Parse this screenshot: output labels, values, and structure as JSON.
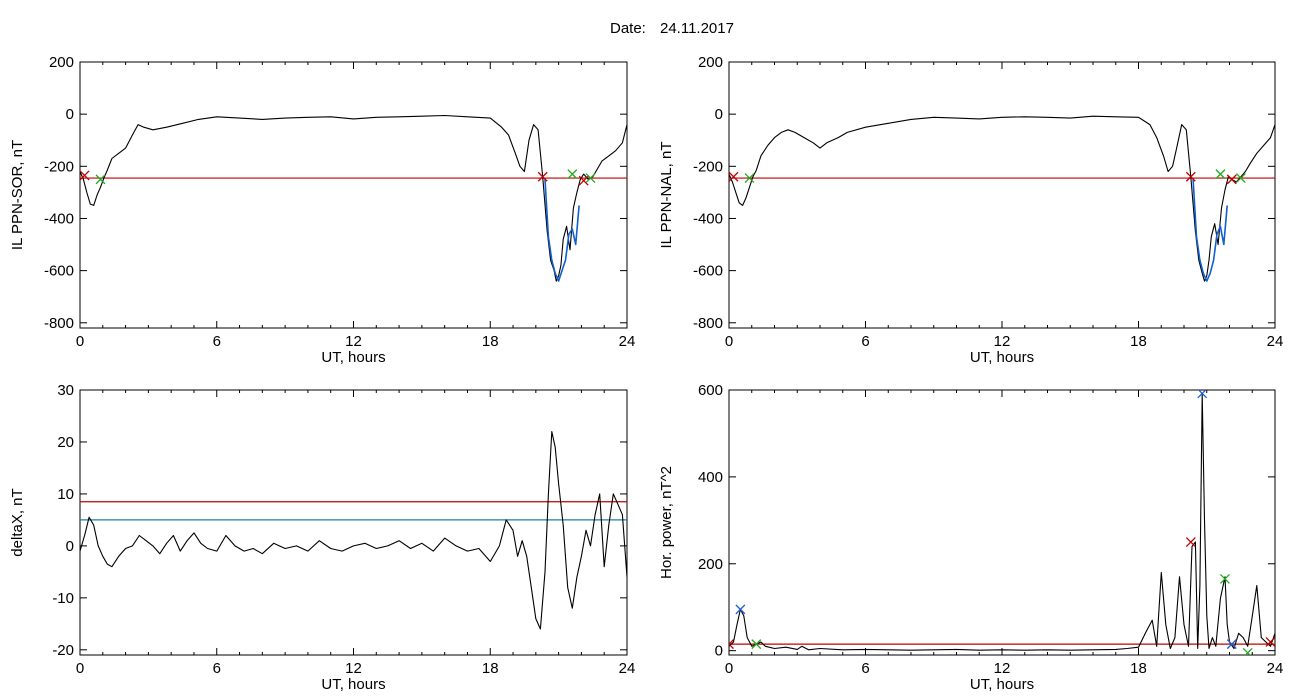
{
  "header": {
    "date_label": "Date:",
    "date_value": "24.11.2017"
  },
  "colors": {
    "trace": "#000000",
    "threshold_red": "#c00000",
    "threshold_cyan": "#1a7fa0",
    "disturbed": "#1060d0",
    "marker_green": "#22aa22",
    "marker_red": "#c00000",
    "marker_blue": "#2060d0"
  },
  "chart_data": [
    {
      "type": "line",
      "xlabel": "UT, hours",
      "ylabel": "IL PPN-SOR, nT",
      "xlim": [
        0,
        24
      ],
      "ylim": [
        -820,
        200
      ],
      "xticks": [
        0,
        6,
        12,
        18,
        24
      ],
      "yticks": [
        200,
        0,
        -200,
        -400,
        -600,
        -800
      ],
      "grid": false,
      "series": [
        {
          "values_x": [
            0,
            0.15,
            0.3,
            0.45,
            0.6,
            0.75,
            0.9,
            1.05,
            1.2,
            1.4,
            1.7,
            2.0,
            2.3,
            2.55,
            2.8,
            3.2,
            3.8,
            4.5,
            5.2,
            6,
            7,
            8,
            9,
            10,
            11,
            12,
            13,
            14,
            15,
            16,
            17,
            18,
            18.5,
            18.8,
            19.1,
            19.3,
            19.5,
            19.7,
            19.9,
            20.1,
            20.3,
            20.5,
            20.65,
            20.8,
            20.9,
            21.0,
            21.1,
            21.2,
            21.35,
            21.5,
            21.65,
            21.8,
            21.95,
            22.1,
            22.3,
            22.5,
            22.7,
            22.9,
            23.2,
            23.5,
            23.8,
            24
          ],
          "values_y": [
            -220,
            -250,
            -300,
            -345,
            -350,
            -310,
            -280,
            -245,
            -215,
            -170,
            -150,
            -130,
            -80,
            -40,
            -50,
            -60,
            -50,
            -35,
            -20,
            -10,
            -15,
            -20,
            -15,
            -12,
            -10,
            -18,
            -12,
            -10,
            -8,
            -5,
            -10,
            -15,
            -50,
            -80,
            -150,
            -200,
            -220,
            -100,
            -40,
            -60,
            -240,
            -450,
            -560,
            -600,
            -640,
            -620,
            -580,
            -480,
            -430,
            -520,
            -360,
            -300,
            -250,
            -230,
            -250,
            -240,
            -210,
            -180,
            -160,
            -140,
            -110,
            -40
          ]
        },
        {
          "values_x": [
            20.4,
            20.55,
            20.7,
            20.85,
            21.0,
            21.15,
            21.3,
            21.45,
            21.6,
            21.75,
            21.9
          ],
          "values_y": [
            -250,
            -470,
            -560,
            -610,
            -640,
            -600,
            -560,
            -460,
            -440,
            -500,
            -350
          ]
        }
      ],
      "thresholds": [
        {
          "y": -245,
          "color": "red"
        }
      ],
      "markers": [
        {
          "x": 0.2,
          "y": -235,
          "color": "red"
        },
        {
          "x": 0.9,
          "y": -250,
          "color": "green"
        },
        {
          "x": 20.3,
          "y": -240,
          "color": "red"
        },
        {
          "x": 21.6,
          "y": -230,
          "color": "green"
        },
        {
          "x": 22.1,
          "y": -255,
          "color": "red"
        },
        {
          "x": 22.4,
          "y": -245,
          "color": "green"
        }
      ]
    },
    {
      "type": "line",
      "xlabel": "UT, hours",
      "ylabel": "IL PPN-NAL, nT",
      "xlim": [
        0,
        24
      ],
      "ylim": [
        -820,
        200
      ],
      "xticks": [
        0,
        6,
        12,
        18,
        24
      ],
      "yticks": [
        200,
        0,
        -200,
        -400,
        -600,
        -800
      ],
      "grid": false,
      "series": [
        {
          "values_x": [
            0,
            0.15,
            0.3,
            0.45,
            0.6,
            0.75,
            0.9,
            1.05,
            1.2,
            1.4,
            1.7,
            2.0,
            2.3,
            2.6,
            2.9,
            3.3,
            3.7,
            4.0,
            4.3,
            4.8,
            5.2,
            6,
            7,
            8,
            9,
            10,
            11,
            12,
            13,
            14,
            15,
            16,
            17,
            18,
            18.5,
            18.8,
            19.1,
            19.3,
            19.5,
            19.7,
            19.9,
            20.1,
            20.3,
            20.5,
            20.65,
            20.8,
            20.9,
            21.0,
            21.1,
            21.2,
            21.35,
            21.5,
            21.65,
            21.8,
            21.95,
            22.1,
            22.3,
            22.5,
            22.7,
            22.9,
            23.2,
            23.5,
            23.8,
            24
          ],
          "values_y": [
            -230,
            -260,
            -300,
            -340,
            -350,
            -320,
            -280,
            -240,
            -215,
            -160,
            -120,
            -90,
            -70,
            -60,
            -70,
            -90,
            -110,
            -130,
            -110,
            -90,
            -70,
            -50,
            -35,
            -20,
            -12,
            -15,
            -18,
            -12,
            -10,
            -12,
            -15,
            -8,
            -10,
            -12,
            -40,
            -90,
            -160,
            -220,
            -200,
            -120,
            -40,
            -60,
            -240,
            -450,
            -560,
            -610,
            -640,
            -620,
            -560,
            -470,
            -420,
            -500,
            -360,
            -290,
            -240,
            -250,
            -260,
            -240,
            -220,
            -190,
            -150,
            -120,
            -90,
            -40
          ]
        },
        {
          "values_x": [
            20.4,
            20.55,
            20.7,
            20.85,
            21.0,
            21.15,
            21.3,
            21.45,
            21.6,
            21.75,
            21.9
          ],
          "values_y": [
            -250,
            -470,
            -560,
            -610,
            -640,
            -610,
            -560,
            -460,
            -430,
            -500,
            -350
          ]
        }
      ],
      "thresholds": [
        {
          "y": -245,
          "color": "red"
        }
      ],
      "markers": [
        {
          "x": 0.2,
          "y": -240,
          "color": "red"
        },
        {
          "x": 0.9,
          "y": -245,
          "color": "green"
        },
        {
          "x": 20.3,
          "y": -240,
          "color": "red"
        },
        {
          "x": 21.6,
          "y": -230,
          "color": "green"
        },
        {
          "x": 22.1,
          "y": -250,
          "color": "red"
        },
        {
          "x": 22.5,
          "y": -245,
          "color": "green"
        }
      ]
    },
    {
      "type": "line",
      "xlabel": "UT, hours",
      "ylabel": "deltaX, nT",
      "xlim": [
        0,
        24
      ],
      "ylim": [
        -21,
        30
      ],
      "xticks": [
        0,
        6,
        12,
        18,
        24
      ],
      "yticks": [
        30,
        20,
        10,
        0,
        -10,
        -20
      ],
      "grid": false,
      "series": [
        {
          "values_x": [
            0,
            0.2,
            0.4,
            0.6,
            0.8,
            1.0,
            1.2,
            1.4,
            1.7,
            2.0,
            2.3,
            2.6,
            2.9,
            3.2,
            3.5,
            3.8,
            4.1,
            4.4,
            4.7,
            5.0,
            5.3,
            5.6,
            6.0,
            6.4,
            6.8,
            7.2,
            7.6,
            8.0,
            8.5,
            9,
            9.5,
            10,
            10.5,
            11,
            11.5,
            12,
            12.5,
            13,
            13.5,
            14,
            14.5,
            15,
            15.5,
            16,
            16.5,
            17,
            17.5,
            18,
            18.4,
            18.7,
            19.0,
            19.2,
            19.4,
            19.6,
            19.8,
            20.0,
            20.2,
            20.4,
            20.55,
            20.7,
            20.85,
            21.0,
            21.2,
            21.4,
            21.6,
            21.8,
            22.0,
            22.2,
            22.4,
            22.6,
            22.8,
            23.0,
            23.2,
            23.4,
            23.6,
            23.8,
            24
          ],
          "values_y": [
            -1,
            2,
            5.5,
            4,
            0,
            -2,
            -3.5,
            -4,
            -2,
            -0.5,
            0,
            2,
            1,
            0,
            -1.5,
            0.5,
            2,
            -1,
            1,
            2.5,
            0.5,
            -0.5,
            -1,
            2,
            0,
            -1,
            -0.5,
            -1.5,
            0.5,
            -0.5,
            0,
            -1,
            1,
            -0.5,
            -1,
            0,
            0.5,
            -0.5,
            0,
            1,
            -0.5,
            0.5,
            -1,
            1.5,
            0,
            -1,
            -0.5,
            -3,
            0,
            5,
            3,
            -2,
            1,
            -2,
            -8,
            -14,
            -16,
            -5,
            10,
            22,
            19,
            12,
            4,
            -8,
            -12,
            -6,
            -2,
            3,
            0,
            6,
            10,
            -4,
            4,
            10,
            8,
            6,
            -6
          ]
        }
      ],
      "thresholds": [
        {
          "y": 8.5,
          "color": "red"
        },
        {
          "y": 5,
          "color": "cyan"
        }
      ],
      "markers": []
    },
    {
      "type": "line",
      "xlabel": "UT, hours",
      "ylabel": "Hor. power, nT^2",
      "xlim": [
        0,
        24
      ],
      "ylim": [
        -10,
        600
      ],
      "xticks": [
        0,
        6,
        12,
        18,
        24
      ],
      "yticks": [
        600,
        400,
        200,
        0
      ],
      "grid": false,
      "series": [
        {
          "values_x": [
            0,
            0.2,
            0.35,
            0.5,
            0.65,
            0.8,
            1.0,
            1.2,
            1.4,
            1.6,
            2.0,
            2.5,
            3.0,
            3.2,
            3.5,
            4,
            5,
            6,
            7,
            8,
            9,
            10,
            11,
            12,
            13,
            14,
            15,
            16,
            17,
            17.5,
            18,
            18.3,
            18.6,
            18.8,
            19.0,
            19.2,
            19.4,
            19.6,
            19.8,
            20.0,
            20.2,
            20.35,
            20.5,
            20.6,
            20.7,
            20.8,
            20.9,
            21.0,
            21.1,
            21.25,
            21.4,
            21.6,
            21.8,
            21.9,
            22.0,
            22.2,
            22.4,
            22.6,
            22.8,
            23.0,
            23.2,
            23.4,
            23.6,
            23.8,
            24
          ],
          "values_y": [
            10,
            20,
            60,
            95,
            80,
            30,
            10,
            15,
            20,
            10,
            5,
            8,
            3,
            10,
            2,
            5,
            2,
            3,
            2,
            1,
            2,
            3,
            1,
            2,
            1,
            2,
            1,
            2,
            3,
            5,
            8,
            40,
            70,
            10,
            180,
            60,
            5,
            30,
            170,
            60,
            10,
            240,
            250,
            5,
            150,
            590,
            300,
            80,
            5,
            30,
            10,
            120,
            170,
            60,
            20,
            5,
            40,
            30,
            10,
            80,
            150,
            30,
            20,
            10,
            40
          ]
        }
      ],
      "thresholds": [
        {
          "y": 15,
          "color": "red"
        }
      ],
      "markers": [
        {
          "x": 0.0,
          "y": 15,
          "color": "red"
        },
        {
          "x": 0.5,
          "y": 95,
          "color": "blue"
        },
        {
          "x": 1.2,
          "y": 15,
          "color": "green"
        },
        {
          "x": 20.3,
          "y": 250,
          "color": "red"
        },
        {
          "x": 20.8,
          "y": 592,
          "color": "blue"
        },
        {
          "x": 21.8,
          "y": 165,
          "color": "green"
        },
        {
          "x": 22.1,
          "y": 15,
          "color": "blue"
        },
        {
          "x": 22.8,
          "y": -5,
          "color": "green"
        },
        {
          "x": 23.8,
          "y": 20,
          "color": "red"
        }
      ]
    }
  ]
}
